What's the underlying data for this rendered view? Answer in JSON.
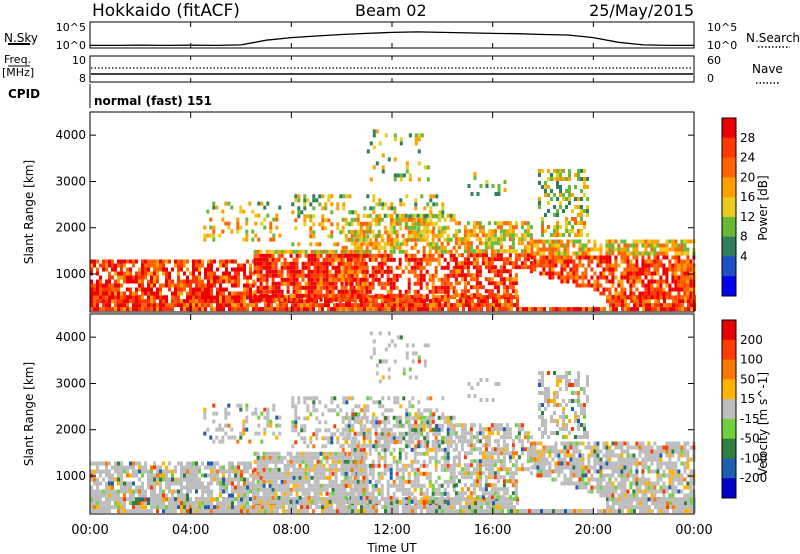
{
  "chart_data": {
    "type": "heatmap",
    "header": {
      "station": "Hokkaido (fitACF)",
      "beam": "Beam 02",
      "date": "25/May/2015"
    },
    "time_axis": {
      "label": "Time UT",
      "range_hours": [
        0,
        24
      ],
      "ticks": [
        "00:00",
        "04:00",
        "08:00",
        "12:00",
        "16:00",
        "20:00",
        "00:00"
      ]
    },
    "noise_panel": {
      "left_label": "N.Sky",
      "right_label": "N.Search",
      "left_ticks": [
        "10^5",
        "10^0"
      ],
      "right_ticks": [
        "10^5",
        "10^0"
      ],
      "sky_profile": [
        [
          0,
          0.1
        ],
        [
          1,
          0.1
        ],
        [
          2,
          0.11
        ],
        [
          3,
          0.1
        ],
        [
          4,
          0.11
        ],
        [
          5,
          0.1
        ],
        [
          6,
          0.12
        ],
        [
          7,
          0.3
        ],
        [
          8,
          0.4
        ],
        [
          9,
          0.46
        ],
        [
          10,
          0.52
        ],
        [
          11,
          0.56
        ],
        [
          12,
          0.6
        ],
        [
          13,
          0.62
        ],
        [
          14,
          0.6
        ],
        [
          15,
          0.58
        ],
        [
          16,
          0.56
        ],
        [
          17,
          0.55
        ],
        [
          18,
          0.52
        ],
        [
          19,
          0.5
        ],
        [
          20,
          0.4
        ],
        [
          21,
          0.22
        ],
        [
          22,
          0.12
        ],
        [
          23,
          0.1
        ],
        [
          24,
          0.1
        ]
      ]
    },
    "freq_panel": {
      "left_label_top": "Freq.",
      "left_label_unit": "[MHz]",
      "right_label": "Nave",
      "left_ticks": [
        "10",
        "8"
      ],
      "right_ticks": [
        "60",
        "0"
      ],
      "cpid_label": "CPID",
      "cpid_text": "normal (fast) 151"
    },
    "power_panel": {
      "ylabel": "Slant Range [km]",
      "ylim": [
        180,
        4500
      ],
      "yticks": [
        1000,
        2000,
        3000,
        4000
      ],
      "colorbar_label": "Power [dB]",
      "colorbar_ticks": [
        "28",
        "24",
        "20",
        "16",
        "12",
        "8",
        "4"
      ],
      "colors": [
        "#0000ee",
        "#1e4fc8",
        "#2f7f5f",
        "#68b83a",
        "#e8cc1e",
        "#ffa000",
        "#ff6400",
        "#ff3800",
        "#ee0000"
      ]
    },
    "velocity_panel": {
      "ylabel": "Slant Range [km]",
      "ylim": [
        180,
        4500
      ],
      "yticks": [
        1000,
        2000,
        3000,
        4000
      ],
      "colorbar_label": "Velocity [m s^-1]",
      "colorbar_ticks": [
        "200",
        "100",
        "50",
        "15",
        "-15",
        "-50",
        "-100",
        "-200"
      ],
      "colors": [
        "#0000c8",
        "#1f5fb0",
        "#2f8040",
        "#70d040",
        "#bdbdbd",
        "#ffb400",
        "#ff7800",
        "#ff3c00",
        "#e60000"
      ]
    },
    "scatter_regions": [
      {
        "t0": 0.0,
        "t1": 24.0,
        "r0": 200,
        "r1": 500,
        "density": 0.9
      },
      {
        "t0": 0.0,
        "t1": 6.5,
        "r0": 450,
        "r1": 1300,
        "density": 0.75
      },
      {
        "t0": 6.5,
        "t1": 11.0,
        "r0": 400,
        "r1": 1500,
        "density": 0.85
      },
      {
        "t0": 10.0,
        "t1": 14.5,
        "r0": 400,
        "r1": 2300,
        "density": 0.6
      },
      {
        "t0": 14.5,
        "t1": 17.5,
        "r0": 500,
        "r1": 2100,
        "density": 0.7
      },
      {
        "t0": 17.5,
        "t1": 24.0,
        "r0": 450,
        "r1": 1700,
        "density": 0.75
      },
      {
        "t0": 17.8,
        "t1": 19.8,
        "r0": 1800,
        "r1": 3200,
        "density": 0.45
      },
      {
        "t0": 8.0,
        "t1": 14.0,
        "r0": 1600,
        "r1": 2700,
        "density": 0.3
      },
      {
        "t0": 4.5,
        "t1": 7.5,
        "r0": 1700,
        "r1": 2500,
        "density": 0.3
      },
      {
        "t0": 11.0,
        "t1": 13.5,
        "r0": 3000,
        "r1": 4100,
        "density": 0.12
      },
      {
        "t0": 15.0,
        "t1": 16.5,
        "r0": 2600,
        "r1": 3200,
        "density": 0.2
      }
    ],
    "echo_free_gap": {
      "t0": 17.0,
      "t1": 20.5,
      "r0": 250,
      "r1": 1100
    }
  }
}
